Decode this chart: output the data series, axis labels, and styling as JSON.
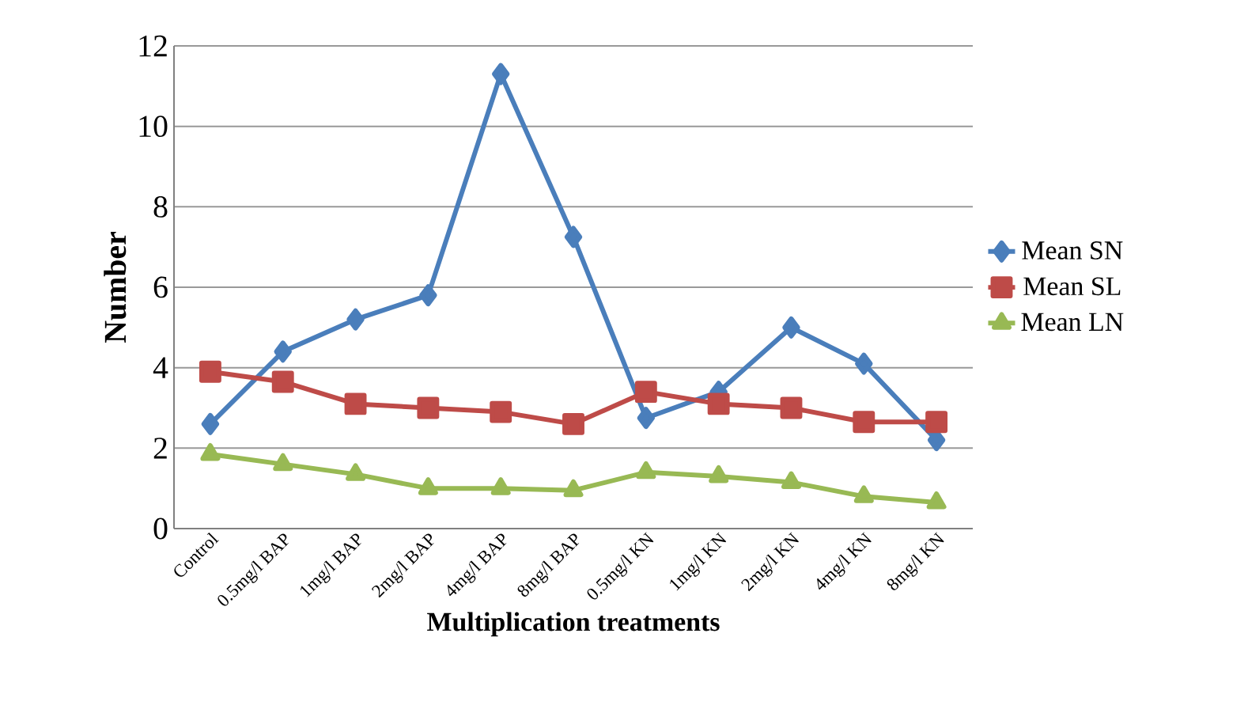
{
  "chart_data": {
    "type": "line",
    "xlabel": "Multiplication treatments",
    "ylabel": "Number",
    "categories": [
      "Control",
      "0.5mg/l BAP",
      "1mg/l BAP",
      "2mg/l BAP",
      "4mg/l BAP",
      "8mg/l BAP",
      "0.5mg/l KN",
      "1mg/l KN",
      "2mg/l KN",
      "4mg/l KN",
      "8mg/l KN"
    ],
    "series": [
      {
        "name": "Mean SN",
        "color": "#4a7ebb",
        "marker": "diamond",
        "values": [
          2.6,
          4.4,
          5.2,
          5.8,
          11.3,
          7.25,
          2.75,
          3.4,
          5.0,
          4.1,
          2.2
        ]
      },
      {
        "name": "Mean SL",
        "color": "#be4b48",
        "marker": "square",
        "values": [
          3.9,
          3.65,
          3.1,
          3.0,
          2.9,
          2.6,
          3.4,
          3.1,
          3.0,
          2.65,
          2.65
        ]
      },
      {
        "name": "Mean LN",
        "color": "#98b954",
        "marker": "triangle",
        "values": [
          1.85,
          1.6,
          1.35,
          1.0,
          1.0,
          0.95,
          1.4,
          1.3,
          1.15,
          0.8,
          0.65
        ]
      }
    ],
    "ylim": [
      0,
      12
    ],
    "yticks": [
      0,
      2,
      4,
      6,
      8,
      10,
      12
    ],
    "grid": "y",
    "legend": "right",
    "line_style": "solid"
  }
}
